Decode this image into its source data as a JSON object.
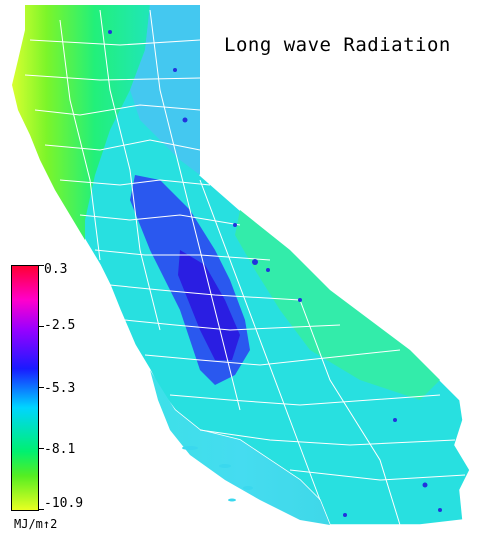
{
  "title": "Long wave Radiation",
  "legend": {
    "ticks": [
      "0.3",
      "-2.5",
      "-5.3",
      "-8.1",
      "-10.9"
    ],
    "units": "MJ/m↑2"
  },
  "colors": {
    "max": "#ff0033",
    "high": "#ff00cc",
    "mid_high": "#1a1aff",
    "mid": "#00d5ff",
    "mid_low": "#00f070",
    "low": "#e8ff22"
  }
}
